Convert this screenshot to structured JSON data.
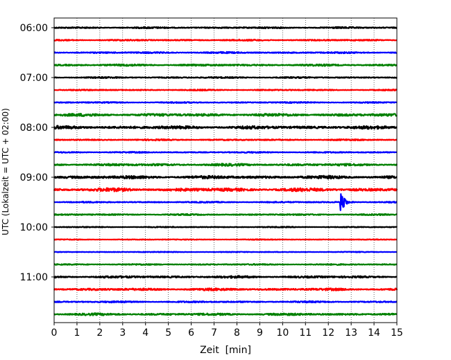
{
  "chart_data": {
    "type": "line",
    "title": "",
    "xlabel": "Zeit  [min]",
    "ylabel": "UTC (Lokalzeit = UTC + 02:00)",
    "xlim": [
      0,
      15
    ],
    "x_ticks": [
      "0",
      "1",
      "2",
      "3",
      "4",
      "5",
      "6",
      "7",
      "8",
      "9",
      "10",
      "11",
      "12",
      "13",
      "14",
      "15"
    ],
    "y_ticks": [
      "06:00",
      "07:00",
      "08:00",
      "09:00",
      "10:00",
      "11:00"
    ],
    "grid": "vertical-dotted",
    "trace_interval_minutes": 15,
    "series": [
      {
        "start": "06:00",
        "color": "#000000",
        "amplitude": 1.0
      },
      {
        "start": "06:15",
        "color": "#ff0000",
        "amplitude": 0.9
      },
      {
        "start": "06:30",
        "color": "#0000ff",
        "amplitude": 1.0
      },
      {
        "start": "06:45",
        "color": "#008000",
        "amplitude": 1.2
      },
      {
        "start": "07:00",
        "color": "#000000",
        "amplitude": 0.9
      },
      {
        "start": "07:15",
        "color": "#ff0000",
        "amplitude": 0.8
      },
      {
        "start": "07:30",
        "color": "#0000ff",
        "amplitude": 0.8
      },
      {
        "start": "07:45",
        "color": "#008000",
        "amplitude": 1.8
      },
      {
        "start": "08:00",
        "color": "#000000",
        "amplitude": 2.0
      },
      {
        "start": "08:15",
        "color": "#ff0000",
        "amplitude": 0.9
      },
      {
        "start": "08:30",
        "color": "#0000ff",
        "amplitude": 0.8
      },
      {
        "start": "08:45",
        "color": "#008000",
        "amplitude": 1.5
      },
      {
        "start": "09:00",
        "color": "#000000",
        "amplitude": 2.0
      },
      {
        "start": "09:15",
        "color": "#ff0000",
        "amplitude": 2.2
      },
      {
        "start": "09:30",
        "color": "#0000ff",
        "amplitude": 0.8,
        "event": {
          "x": 12.55,
          "amplitude": 14
        }
      },
      {
        "start": "09:45",
        "color": "#008000",
        "amplitude": 0.9
      },
      {
        "start": "10:00",
        "color": "#000000",
        "amplitude": 0.6
      },
      {
        "start": "10:15",
        "color": "#ff0000",
        "amplitude": 0.5
      },
      {
        "start": "10:30",
        "color": "#0000ff",
        "amplitude": 0.5
      },
      {
        "start": "10:45",
        "color": "#008000",
        "amplitude": 0.8
      },
      {
        "start": "11:00",
        "color": "#000000",
        "amplitude": 1.4
      },
      {
        "start": "11:15",
        "color": "#ff0000",
        "amplitude": 1.5
      },
      {
        "start": "11:30",
        "color": "#0000ff",
        "amplitude": 1.0
      },
      {
        "start": "11:45",
        "color": "#008000",
        "amplitude": 1.4
      }
    ]
  }
}
